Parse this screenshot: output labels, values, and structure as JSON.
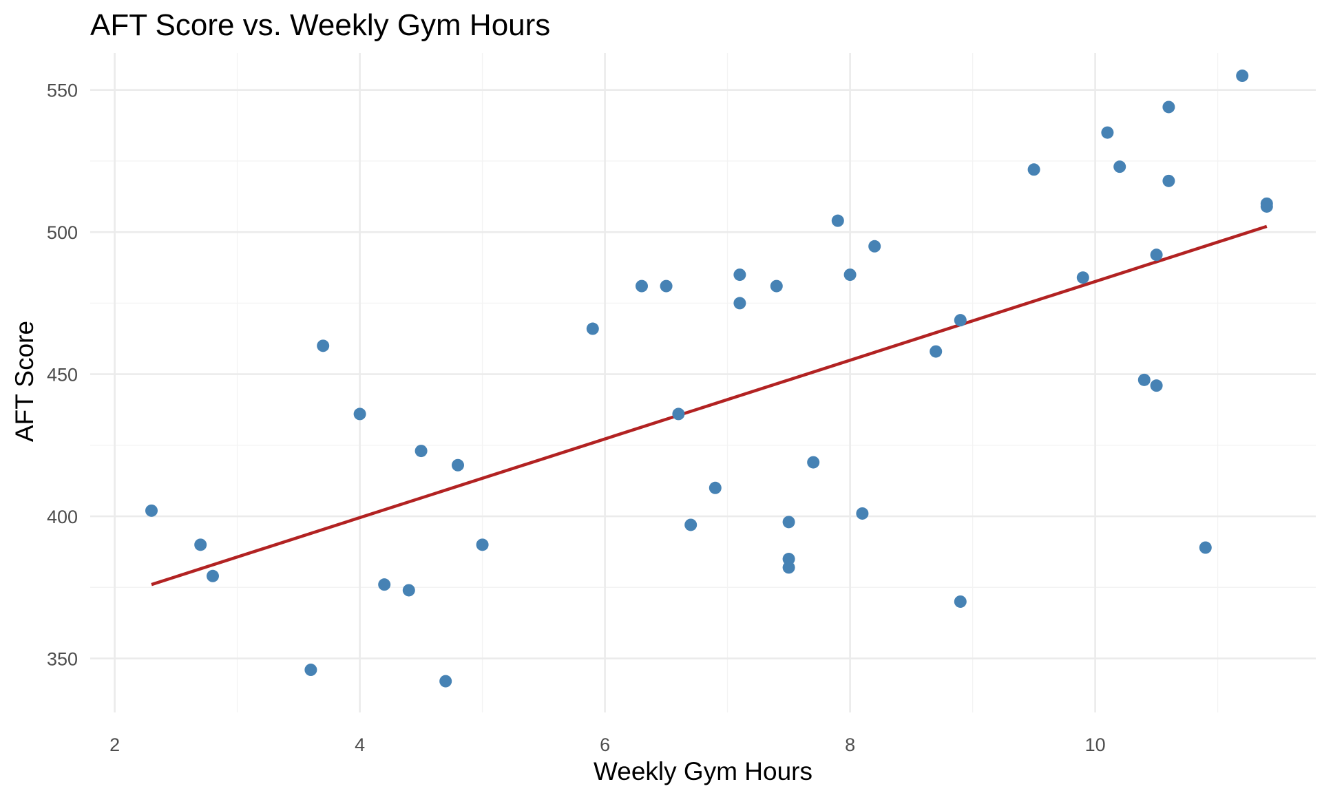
{
  "chart_data": {
    "type": "scatter",
    "title": "AFT Score vs. Weekly Gym Hours",
    "xlabel": "Weekly Gym Hours",
    "ylabel": "AFT Score",
    "xlim": [
      1.8,
      11.8
    ],
    "ylim": [
      331,
      563
    ],
    "x_ticks": [
      2,
      4,
      6,
      8,
      10
    ],
    "y_ticks": [
      350,
      400,
      450,
      500,
      550
    ],
    "x_tick_labels": [
      "2",
      "4",
      "6",
      "8",
      "10"
    ],
    "y_tick_labels": [
      "350",
      "400",
      "450",
      "500",
      "550"
    ],
    "grid": true,
    "legend": "none",
    "point_color": "#4682B4",
    "trend_color": "#B22222",
    "trend_line": {
      "x": [
        2.3,
        11.4
      ],
      "y": [
        376,
        502
      ]
    },
    "points": [
      {
        "x": 2.3,
        "y": 402
      },
      {
        "x": 2.7,
        "y": 390
      },
      {
        "x": 2.8,
        "y": 379
      },
      {
        "x": 3.6,
        "y": 346
      },
      {
        "x": 3.7,
        "y": 460
      },
      {
        "x": 4.0,
        "y": 436
      },
      {
        "x": 4.2,
        "y": 376
      },
      {
        "x": 4.4,
        "y": 374
      },
      {
        "x": 4.5,
        "y": 423
      },
      {
        "x": 4.7,
        "y": 342
      },
      {
        "x": 4.8,
        "y": 418
      },
      {
        "x": 5.0,
        "y": 390
      },
      {
        "x": 5.9,
        "y": 466
      },
      {
        "x": 6.3,
        "y": 481
      },
      {
        "x": 6.5,
        "y": 481
      },
      {
        "x": 6.6,
        "y": 436
      },
      {
        "x": 6.7,
        "y": 397
      },
      {
        "x": 6.9,
        "y": 410
      },
      {
        "x": 7.1,
        "y": 485
      },
      {
        "x": 7.1,
        "y": 475
      },
      {
        "x": 7.4,
        "y": 481
      },
      {
        "x": 7.5,
        "y": 398
      },
      {
        "x": 7.5,
        "y": 385
      },
      {
        "x": 7.5,
        "y": 382
      },
      {
        "x": 7.7,
        "y": 419
      },
      {
        "x": 7.9,
        "y": 504
      },
      {
        "x": 8.0,
        "y": 485
      },
      {
        "x": 8.1,
        "y": 401
      },
      {
        "x": 8.2,
        "y": 495
      },
      {
        "x": 8.7,
        "y": 458
      },
      {
        "x": 8.9,
        "y": 469
      },
      {
        "x": 8.9,
        "y": 370
      },
      {
        "x": 9.5,
        "y": 522
      },
      {
        "x": 9.9,
        "y": 484
      },
      {
        "x": 10.1,
        "y": 535
      },
      {
        "x": 10.2,
        "y": 523
      },
      {
        "x": 10.4,
        "y": 448
      },
      {
        "x": 10.5,
        "y": 446
      },
      {
        "x": 10.5,
        "y": 492
      },
      {
        "x": 10.6,
        "y": 544
      },
      {
        "x": 10.6,
        "y": 518
      },
      {
        "x": 10.9,
        "y": 389
      },
      {
        "x": 11.2,
        "y": 555
      },
      {
        "x": 11.4,
        "y": 510
      },
      {
        "x": 11.4,
        "y": 509
      }
    ]
  }
}
